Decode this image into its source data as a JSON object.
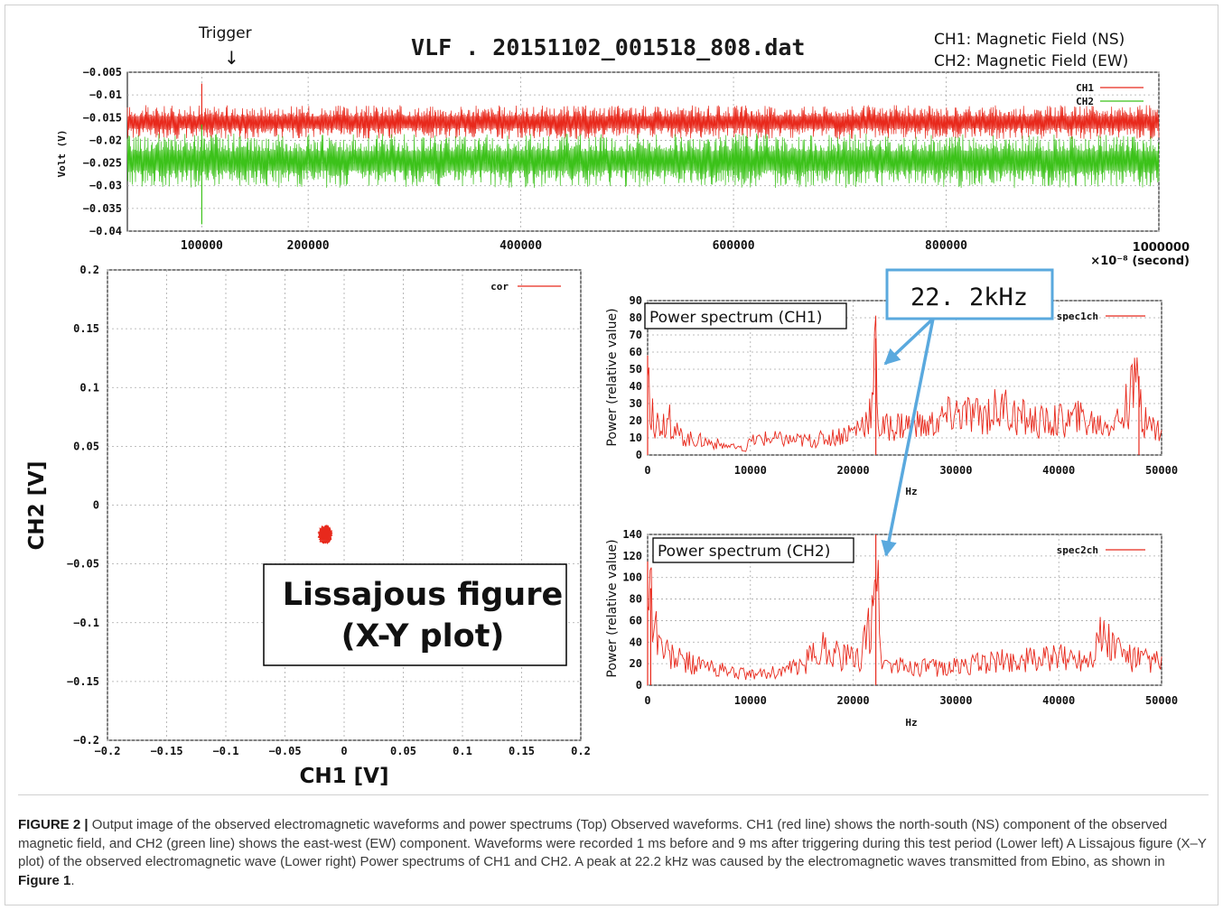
{
  "top_plot": {
    "title": "VLF . 20151102_001518_808.dat",
    "info_line1": "CH1: Magnetic Field (NS)",
    "info_line2": "CH2: Magnetic Field (EW)",
    "trigger_label": "Trigger",
    "trigger_arrow": "↓",
    "ylabel": "Volt (V)",
    "xunit_line1": "1000000",
    "xunit_line2": "×10⁻⁸ (second)"
  },
  "lissajous": {
    "xlabel": "CH1 [V]",
    "ylabel": "CH2 [V]",
    "box_line1": "Lissajous figure",
    "box_line2": "(X-Y plot)"
  },
  "spectrum1": {
    "box_title": "Power spectrum (CH1)",
    "ylabel": "Power (relative value)",
    "xlabel": "Hz"
  },
  "spectrum2": {
    "box_title": "Power spectrum (CH2)",
    "ylabel": "Power (relative value)",
    "xlabel": "Hz"
  },
  "peak_callout": "22. 2kHz",
  "caption": {
    "label": "FIGURE 2 |",
    "text": " Output image of the observed electromagnetic waveforms and power spectrums (Top) Observed waveforms. CH1 (red line) shows the north-south (NS) component of the observed magnetic field, and CH2 (green line) shows the east-west (EW) component. Waveforms were recorded 1 ms before and 9 ms after triggering during this test period (Lower left) A Lissajous figure (X–Y plot) of the observed electromagnetic wave (Lower right) Power spectrums of CH1 and CH2. A peak at 22.2 kHz was caused by the electromagnetic waves transmitted from Ebino, as shown in ",
    "ref": "Figure 1",
    "end": "."
  },
  "colors": {
    "ch1": "#e8291c",
    "ch2": "#3cc21a",
    "callout": "#5aa9de",
    "grid": "#a8a8a8"
  },
  "chart_data": [
    {
      "type": "line",
      "title": "VLF . 20151102_001518_808.dat",
      "xlabel": "×10⁻⁸ (second)",
      "ylabel": "Volt (V)",
      "xlim": [
        30000,
        1000000
      ],
      "ylim": [
        -0.04,
        -0.005
      ],
      "xticks": [
        100000,
        200000,
        400000,
        600000,
        800000,
        1000000
      ],
      "yticks": [
        "-0.005",
        "-0.01",
        "-0.015",
        "-0.02",
        "-0.025",
        "-0.03",
        "-0.035",
        "-0.04"
      ],
      "grid": true,
      "legend_position": "top-right",
      "trigger_x": 100000,
      "series": [
        {
          "name": "CH1",
          "color": "#e8291c",
          "mean": -0.016,
          "band": [
            -0.0195,
            -0.012
          ],
          "spike": {
            "x": 100000,
            "min": -0.019,
            "max": -0.0075
          }
        },
        {
          "name": "CH2",
          "color": "#3cc21a",
          "mean": -0.0245,
          "band": [
            -0.0305,
            -0.0185
          ],
          "spike": {
            "x": 100000,
            "min": -0.0385,
            "max": -0.0165
          }
        }
      ]
    },
    {
      "type": "scatter",
      "title": "",
      "xlabel": "CH1 [V]",
      "ylabel": "CH2 [V]",
      "xlim": [
        -0.2,
        0.2
      ],
      "ylim": [
        -0.2,
        0.2
      ],
      "xticks": [
        "-0.2",
        "-0.15",
        "-0.1",
        "-0.05",
        "0",
        "0.05",
        "0.1",
        "0.15",
        "0.2"
      ],
      "yticks": [
        "0.2",
        "0.15",
        "0.1",
        "0.05",
        "0",
        "-0.05",
        "-0.1",
        "-0.15",
        "-0.2"
      ],
      "grid": true,
      "legend_position": "top-right",
      "series": [
        {
          "name": "cor",
          "color": "#e8291c",
          "center": [
            -0.016,
            -0.025
          ],
          "spread": [
            0.006,
            0.008
          ]
        }
      ]
    },
    {
      "type": "line",
      "title": "Power spectrum (CH1)",
      "xlabel": "Hz",
      "ylabel": "Power (relative value)",
      "xlim": [
        0,
        50000
      ],
      "ylim": [
        0,
        90
      ],
      "xticks": [
        0,
        10000,
        20000,
        30000,
        40000,
        50000
      ],
      "yticks": [
        0,
        10,
        20,
        30,
        40,
        50,
        60,
        70,
        80,
        90
      ],
      "grid": true,
      "legend_position": "top-right",
      "series": [
        {
          "name": "spec1ch",
          "color": "#e8291c",
          "x": [
            0,
            300,
            500,
            1000,
            2000,
            3000,
            4000,
            6000,
            8000,
            9500,
            10000,
            11000,
            12000,
            14000,
            16000,
            18000,
            20000,
            21000,
            21900,
            22200,
            22500,
            23000,
            25000,
            27000,
            30000,
            32000,
            34000,
            36000,
            38000,
            40000,
            42000,
            44000,
            46000,
            47800,
            48200,
            50000
          ],
          "values": [
            58,
            30,
            22,
            20,
            22,
            12,
            10,
            8,
            5,
            3,
            8,
            10,
            10,
            9,
            9,
            11,
            15,
            20,
            30,
            68,
            14,
            17,
            19,
            17,
            26,
            24,
            28,
            24,
            20,
            21,
            22,
            19,
            22,
            46,
            20,
            15
          ]
        }
      ]
    },
    {
      "type": "line",
      "title": "Power spectrum (CH2)",
      "xlabel": "Hz",
      "ylabel": "Power (relative value)",
      "xlim": [
        0,
        50000
      ],
      "ylim": [
        0,
        140
      ],
      "xticks": [
        0,
        10000,
        20000,
        30000,
        40000,
        50000
      ],
      "yticks": [
        0,
        20,
        40,
        60,
        80,
        100,
        120,
        140
      ],
      "grid": true,
      "legend_position": "top-right",
      "series": [
        {
          "name": "spec2ch",
          "color": "#e8291c",
          "x": [
            0,
            300,
            800,
            1200,
            2000,
            3000,
            5000,
            7000,
            10000,
            12000,
            15000,
            17000,
            19000,
            20500,
            21700,
            22200,
            22700,
            24000,
            27000,
            30000,
            33000,
            36000,
            40000,
            43000,
            44000,
            47000,
            50000
          ],
          "values": [
            115,
            90,
            60,
            40,
            30,
            25,
            20,
            15,
            10,
            12,
            18,
            38,
            28,
            24,
            58,
            140,
            24,
            19,
            17,
            18,
            22,
            24,
            26,
            28,
            48,
            26,
            22
          ]
        }
      ]
    }
  ]
}
